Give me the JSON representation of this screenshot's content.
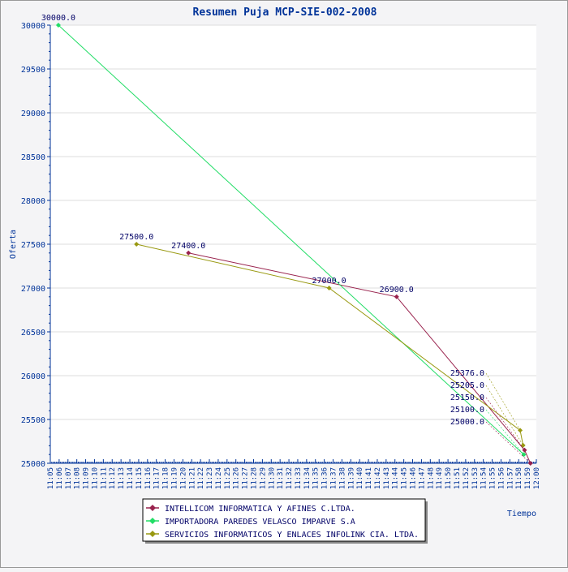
{
  "chart_data": {
    "type": "line",
    "title": "Resumen Puja MCP-SIE-002-2008",
    "xlabel": "Tiempo",
    "ylabel": "Oferta",
    "ylim": [
      25000,
      30000
    ],
    "yticks": [
      25000,
      25500,
      26000,
      26500,
      27000,
      27500,
      28000,
      28500,
      29000,
      29500,
      30000
    ],
    "xlim": [
      "11:05",
      "12:00"
    ],
    "xticks": [
      "11:05",
      "11:06",
      "11:07",
      "11:08",
      "11:09",
      "11:10",
      "11:11",
      "11:12",
      "11:13",
      "11:14",
      "11:15",
      "11:16",
      "11:17",
      "11:18",
      "11:19",
      "11:20",
      "11:21",
      "11:22",
      "11:23",
      "11:24",
      "11:25",
      "11:26",
      "11:27",
      "11:28",
      "11:29",
      "11:30",
      "11:31",
      "11:32",
      "11:33",
      "11:34",
      "11:35",
      "11:36",
      "11:37",
      "11:38",
      "11:39",
      "11:40",
      "11:41",
      "11:42",
      "11:43",
      "11:44",
      "11:45",
      "11:46",
      "11:47",
      "11:48",
      "11:49",
      "11:50",
      "11:51",
      "11:52",
      "11:53",
      "11:54",
      "11:55",
      "11:56",
      "11:57",
      "11:58",
      "11:59",
      "12:00"
    ],
    "grid": true,
    "legend_placement": "bottom-center",
    "series": [
      {
        "name": "INTELLICOM INFORMATICA Y AFINES C.LTDA.",
        "color": "#99224d",
        "points": [
          {
            "x": "11:20:38",
            "y": 27400
          },
          {
            "x": "11:44:11",
            "y": 26900
          },
          {
            "x": "11:58:40",
            "y": 25150
          },
          {
            "x": "11:59:20",
            "y": 25000
          }
        ]
      },
      {
        "name": "IMPORTADORA PAREDES VELASCO IMPARVE S.A",
        "color": "#22dd66",
        "points": [
          {
            "x": "11:05:55",
            "y": 30000
          },
          {
            "x": "11:58:35",
            "y": 25100
          }
        ]
      },
      {
        "name": "SERVICIOS INFORMATICOS Y ENLACES INFOLINK CIA. LTDA.",
        "color": "#999911",
        "points": [
          {
            "x": "11:14:45",
            "y": 27500
          },
          {
            "x": "11:36:33",
            "y": 27000
          },
          {
            "x": "11:58:10",
            "y": 25376
          },
          {
            "x": "11:58:30",
            "y": 25205
          }
        ]
      }
    ]
  }
}
